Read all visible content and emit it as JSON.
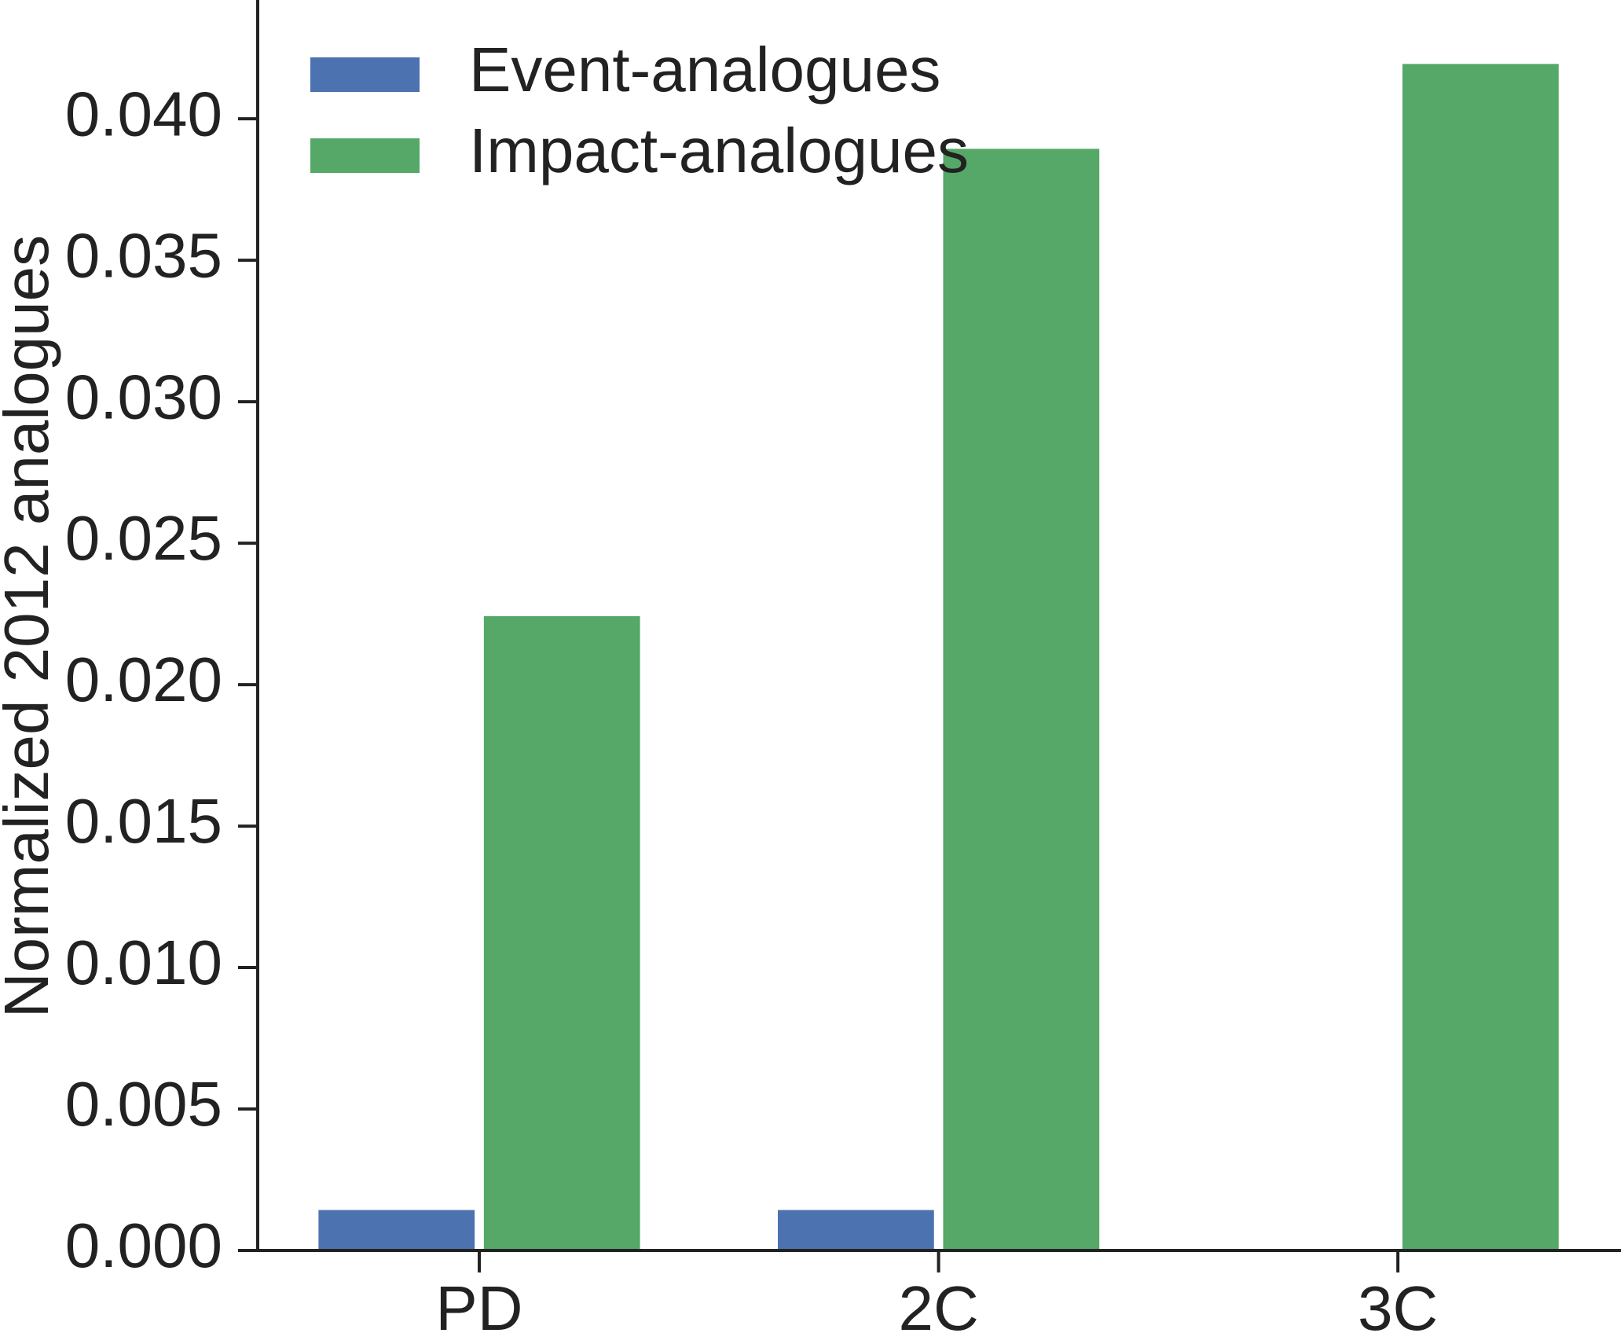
{
  "chart_data": {
    "type": "bar",
    "y_label": "Normalized 2012 analogues",
    "categories": [
      "PD",
      "2C",
      "3C"
    ],
    "series": [
      {
        "name": "Event-analogues",
        "color": "#4c72b0",
        "values": [
          0.00143,
          0.00143,
          0
        ]
      },
      {
        "name": "Impact-analogues",
        "color": "#55a868",
        "values": [
          0.02242,
          0.03894,
          0.04194
        ]
      }
    ],
    "ylim": [
      0,
      0.0442
    ],
    "yticks": [
      {
        "value": 0,
        "label": "0.000"
      },
      {
        "value": 0.005,
        "label": "0.005"
      },
      {
        "value": 0.01,
        "label": "0.010"
      },
      {
        "value": 0.015,
        "label": "0.015"
      },
      {
        "value": 0.02,
        "label": "0.020"
      },
      {
        "value": 0.025,
        "label": "0.025"
      },
      {
        "value": 0.03,
        "label": "0.030"
      },
      {
        "value": 0.035,
        "label": "0.035"
      },
      {
        "value": 0.04,
        "label": "0.040"
      }
    ],
    "legend": "upper-left"
  }
}
